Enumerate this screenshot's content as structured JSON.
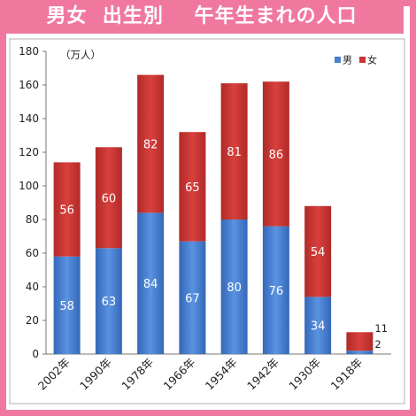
{
  "title": "男女  出生別    午年生まれの人口",
  "chart_data": {
    "type": "bar",
    "stacked": true,
    "unit_label": "（万人）",
    "categories": [
      "2002年",
      "1990年",
      "1978年",
      "1966年",
      "1954年",
      "1942年",
      "1930年",
      "1918年"
    ],
    "series": [
      {
        "name": "男",
        "color": "#4a7fcf",
        "values": [
          58,
          63,
          84,
          67,
          80,
          76,
          34,
          2
        ]
      },
      {
        "name": "女",
        "color": "#c63634",
        "values": [
          56,
          60,
          82,
          65,
          81,
          86,
          54,
          11
        ]
      }
    ],
    "ylim": [
      0,
      180
    ],
    "yticks": [
      0,
      20,
      40,
      60,
      80,
      100,
      120,
      140,
      160,
      180
    ],
    "legend_position": "top-right",
    "grid": false
  }
}
